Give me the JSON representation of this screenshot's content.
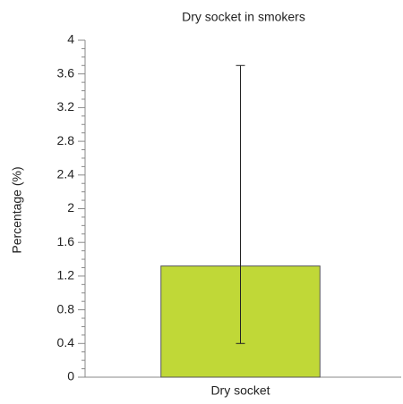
{
  "chart_data": {
    "type": "bar",
    "title": "Dry socket in smokers",
    "ylabel": "Percentage (%)",
    "categories": [
      "Dry socket"
    ],
    "values": [
      1.32
    ],
    "error_lower": [
      0.4
    ],
    "error_upper": [
      3.7
    ],
    "color": "#c0d837",
    "ylim": [
      0,
      4
    ],
    "yticks": [
      0,
      0.4,
      0.8,
      1.2,
      1.6,
      2,
      2.4,
      2.8,
      3.2,
      3.6,
      4
    ],
    "yminorticks": [
      0.1,
      0.2,
      0.3,
      0.5,
      0.6,
      0.7,
      0.9,
      1.0,
      1.1,
      1.3,
      1.4,
      1.5,
      1.7,
      1.8,
      1.9,
      2.1,
      2.2,
      2.3,
      2.5,
      2.6,
      2.7,
      2.9,
      3.0,
      3.1,
      3.3,
      3.4,
      3.5,
      3.7,
      3.8,
      3.9
    ]
  }
}
